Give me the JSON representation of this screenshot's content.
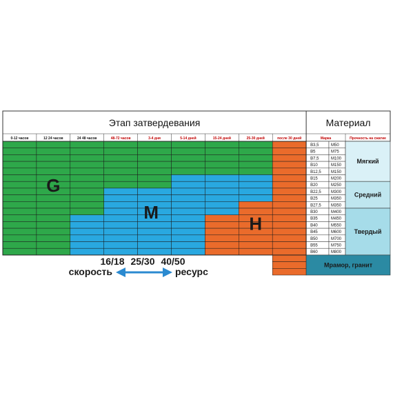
{
  "chart_data": {
    "type": "table",
    "title": "Этап затвердевания",
    "material_title": "Материал",
    "colors": {
      "G": "#2ea84a",
      "M": "#29a8e0",
      "H": "#ea6b2b",
      "soft": "#daf1f7",
      "medium": "#bfe6ef",
      "hard": "#a6dce9",
      "marble": "#2b8aa3",
      "header_bg": "#ffffff",
      "border": "#333333"
    },
    "stages": [
      {
        "label": "0-12 часов",
        "color": "#111111"
      },
      {
        "label": "12 24 часов",
        "color": "#111111"
      },
      {
        "label": "24 48 часов",
        "color": "#111111"
      },
      {
        "label": "48-72 часов",
        "color": "#c00000"
      },
      {
        "label": "3-4 дня",
        "color": "#c00000"
      },
      {
        "label": "5-14 дней",
        "color": "#c00000"
      },
      {
        "label": "15-24 дней",
        "color": "#c00000"
      },
      {
        "label": "25-30 дней",
        "color": "#c00000"
      },
      {
        "label": "после 30 дней",
        "color": "#c00000"
      }
    ],
    "material_columns": [
      "Марка",
      "Прочность на сжатие"
    ],
    "grades": [
      [
        "B3,5",
        "M50"
      ],
      [
        "B5",
        "M75"
      ],
      [
        "B7,5",
        "M100"
      ],
      [
        "B10",
        "M150"
      ],
      [
        "B12,5",
        "M150"
      ],
      [
        "B15",
        "M200"
      ],
      [
        "B20",
        "M250"
      ],
      [
        "B22,5",
        "M300"
      ],
      [
        "B25",
        "M350"
      ],
      [
        "B27,5",
        "M350"
      ],
      [
        "B30",
        "M400"
      ],
      [
        "B35",
        "M450"
      ],
      [
        "B40",
        "M550"
      ],
      [
        "B45",
        "M600"
      ],
      [
        "B50",
        "M700"
      ],
      [
        "B55",
        "M750"
      ],
      [
        "B60",
        "M800"
      ]
    ],
    "zone_grid": [
      "GGGGGGGGH",
      "GGGGGGGGH",
      "GGGGGGGGH",
      "GGGGGGGGH",
      "GGGGGGGGH",
      "GGGGGMMMH",
      "GGGGGMMMH",
      "GGGMMMMMH",
      "GGGMMMMMH",
      "GGGMMMMHH",
      "GGGMMMMHH",
      "GGMMMMHHH",
      "GGMMMMHHH",
      "GGMMMMHHH",
      "GGMMMMHHH",
      "GGMMMMHHH",
      "GGMMMMHHH"
    ],
    "extra_rows_last_column": 3,
    "zones": [
      {
        "letter": "G",
        "anchor_col": 1.5,
        "anchor_row": 6.5
      },
      {
        "letter": "M",
        "anchor_col": 4.4,
        "anchor_row": 10.5
      },
      {
        "letter": "H",
        "anchor_col": 7.5,
        "anchor_row": 12.2
      }
    ],
    "material_categories": [
      {
        "label": "Мягкий",
        "rows": [
          0,
          5
        ],
        "key": "soft"
      },
      {
        "label": "Средний",
        "rows": [
          6,
          9
        ],
        "key": "medium"
      },
      {
        "label": "Твердый",
        "rows": [
          10,
          16
        ],
        "key": "hard"
      },
      {
        "label": "Мрамор, гранит",
        "rows": [
          17,
          19
        ],
        "key": "marble"
      }
    ],
    "legend": {
      "values": [
        "16/18",
        "25/30",
        "40/50"
      ],
      "left_label": "скорость",
      "right_label": "ресурс",
      "arrow_color": "#2b8ad0"
    }
  }
}
